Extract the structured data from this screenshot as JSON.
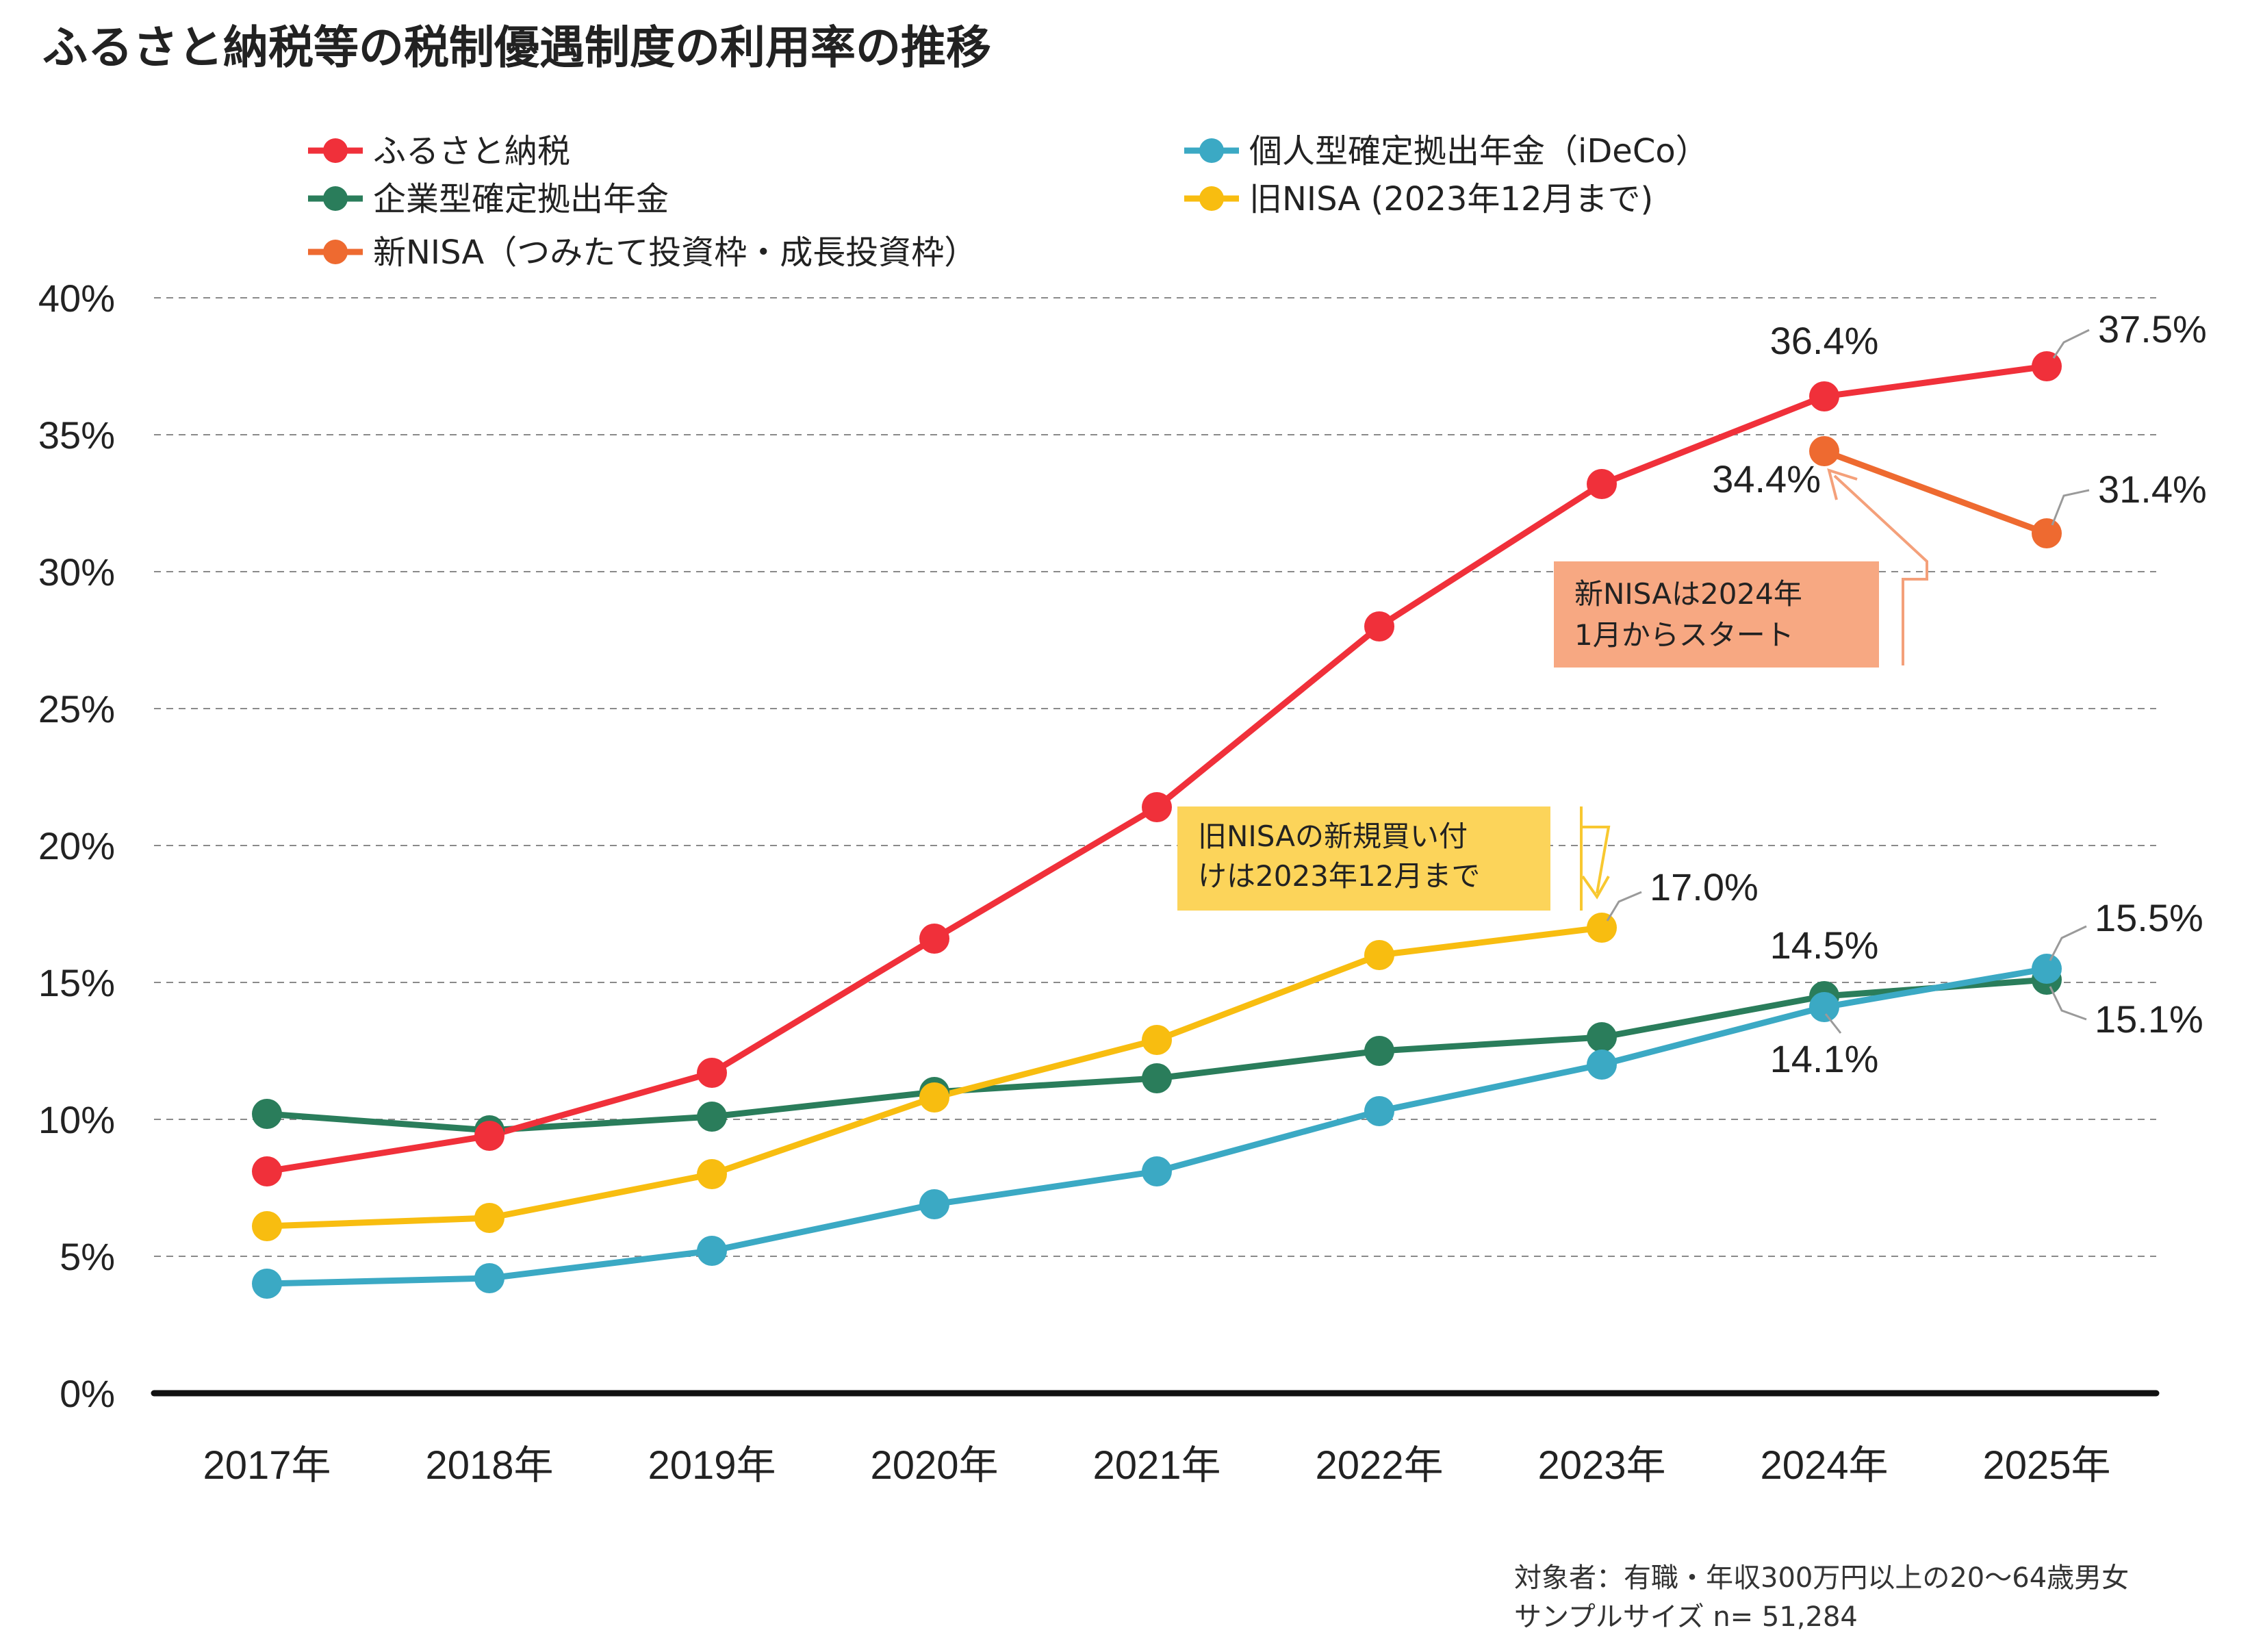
{
  "chart_data": {
    "type": "line",
    "title": "ふるさと納税等の税制優遇制度の利用率の推移",
    "categories": [
      "2017年",
      "2018年",
      "2019年",
      "2020年",
      "2021年",
      "2022年",
      "2023年",
      "2024年",
      "2025年"
    ],
    "ylim": [
      0,
      40
    ],
    "yticks": [
      0,
      5,
      10,
      15,
      20,
      25,
      30,
      35,
      40
    ],
    "ytick_labels": [
      "0%",
      "5%",
      "10%",
      "15%",
      "20%",
      "25%",
      "30%",
      "35%",
      "40%"
    ],
    "grid": "dashed horizontal",
    "legend": "top-left, two columns",
    "series": [
      {
        "id": "furusato",
        "name": "ふるさと納税",
        "color": "#f0303a",
        "values": [
          8.1,
          9.4,
          11.7,
          16.6,
          21.4,
          28.0,
          33.2,
          36.4,
          37.5
        ]
      },
      {
        "id": "ideco",
        "name": "個人型確定拠出年金（iDeCo）",
        "color": "#3ba9c4",
        "values": [
          4.0,
          4.2,
          5.2,
          6.9,
          8.1,
          10.3,
          12.0,
          14.1,
          15.5
        ]
      },
      {
        "id": "corporate_dc",
        "name": "企業型確定拠出年金",
        "color": "#2a7d5b",
        "values": [
          10.2,
          9.6,
          10.1,
          11.0,
          11.5,
          12.5,
          13.0,
          14.5,
          15.1
        ]
      },
      {
        "id": "old_nisa",
        "name": "旧NISA (2023年12月まで)",
        "color": "#f8bd10",
        "values": [
          6.1,
          6.4,
          8.0,
          10.8,
          12.9,
          16.0,
          17.0,
          null,
          null
        ]
      },
      {
        "id": "new_nisa",
        "name": "新NISA（つみたて投資枠・成長投資枠）",
        "color": "#ee6a30",
        "values": [
          null,
          null,
          null,
          null,
          null,
          null,
          null,
          34.4,
          31.4
        ]
      }
    ],
    "data_labels": [
      {
        "text": "36.4%"
      },
      {
        "text": "37.5%"
      },
      {
        "text": "34.4%"
      },
      {
        "text": "31.4%"
      },
      {
        "text": "17.0%"
      },
      {
        "text": "14.5%"
      },
      {
        "text": "15.5%"
      },
      {
        "text": "14.1%"
      },
      {
        "text": "15.1%"
      }
    ],
    "annotations": [
      {
        "id": "new_nisa_note",
        "lines": [
          "新NISAは2024年",
          "1月からスタート"
        ],
        "bg": "#f7a882",
        "line_color": "#f4a07a"
      },
      {
        "id": "old_nisa_note",
        "lines": [
          "旧NISAの新規買い付",
          "けは2023年12月まで"
        ],
        "bg": "#fcd45a",
        "line_color": "#f8c830"
      }
    ],
    "footnote": [
      "対象者：有職・年収300万円以上の20～64歳男女",
      "サンプルサイズ n= 51,284"
    ]
  }
}
